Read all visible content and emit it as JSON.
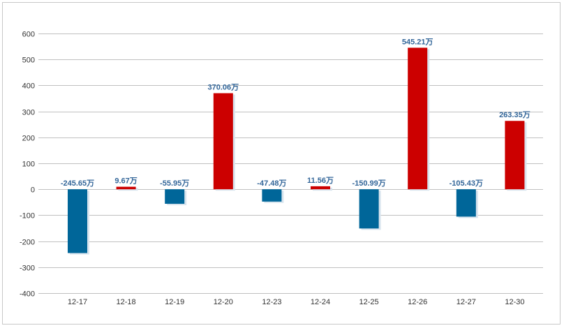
{
  "chart_data": {
    "type": "bar",
    "title": "",
    "xlabel": "",
    "ylabel": "",
    "categories": [
      "12-17",
      "12-18",
      "12-19",
      "12-20",
      "12-23",
      "12-24",
      "12-25",
      "12-26",
      "12-27",
      "12-30"
    ],
    "values": [
      -245.65,
      9.67,
      -55.95,
      370.06,
      -47.48,
      11.56,
      -150.99,
      545.21,
      -105.43,
      263.35
    ],
    "data_labels": [
      "-245.65万",
      "9.67万",
      "-55.95万",
      "370.06万",
      "-47.48万",
      "11.56万",
      "-150.99万",
      "545.21万",
      "-105.43万",
      "263.35万"
    ],
    "ylim": [
      -400,
      600
    ],
    "yticks": [
      600,
      500,
      400,
      300,
      200,
      100,
      0,
      -100,
      -200,
      -300,
      -400
    ],
    "ytick_labels": [
      "600",
      "500",
      "400",
      "300",
      "200",
      "100",
      "0",
      "-100",
      "-200",
      "-300",
      "-400"
    ],
    "grid": true,
    "legend": "none",
    "colors": {
      "positive": "#cc0000",
      "negative": "#006699",
      "label_text": "#336699",
      "grid": "#c0c0c0",
      "shadow": "#d8e4ee"
    }
  }
}
